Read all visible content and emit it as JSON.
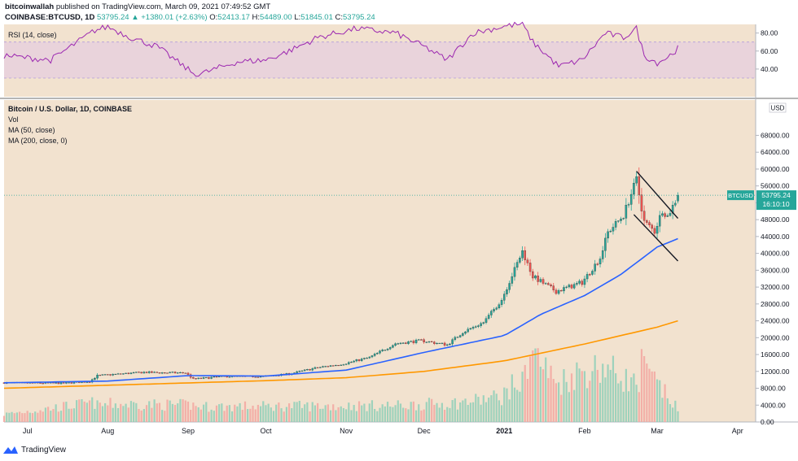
{
  "header": {
    "author": "bitcoinwallah",
    "published_text": "published on TradingView.com, March 09, 2021 07:49:52 GMT",
    "symbol": "COINBASE:BTCUSD, 1D",
    "last": "53795.24",
    "change": "▲ +1380.01 (+2.63%)",
    "o_label": "O:",
    "o": "52413.17",
    "h_label": "H:",
    "h": "54489.00",
    "l_label": "L:",
    "l": "51845.01",
    "c_label": "C:",
    "c": "53795.24"
  },
  "rsi_panel": {
    "label": "RSI (14, close)",
    "ticks": [
      "80.00",
      "60.00",
      "40.00"
    ]
  },
  "legend": {
    "title": "Bitcoin / U.S. Dollar, 1D, COINBASE",
    "items": [
      "Vol",
      "MA (50, close)",
      "MA (200, close, 0)"
    ]
  },
  "currency_label": "USD",
  "price_label": {
    "symbol": "BTCUSD",
    "value": "53795.24",
    "countdown": "16:10:10"
  },
  "footer": {
    "brand": "TradingView"
  },
  "colors": {
    "bg": "#f2e2cf",
    "up": "#26a69a",
    "down": "#ef5350",
    "ma50": "#2962ff",
    "ma200": "#ff9800",
    "rsi_line": "#9c27b0",
    "rsi_band": "#e6cde0"
  },
  "chart_data": {
    "type": "candlestick",
    "title": "Bitcoin / U.S. Dollar, 1D, COINBASE",
    "y_ticks": [
      "0.00",
      "4000.00",
      "8000.00",
      "12000.00",
      "16000.00",
      "20000.00",
      "24000.00",
      "28000.00",
      "32000.00",
      "36000.00",
      "40000.00",
      "44000.00",
      "48000.00",
      "52000.00",
      "56000.00",
      "60000.00",
      "64000.00",
      "68000.00"
    ],
    "x_ticks": [
      "Jul",
      "Aug",
      "Sep",
      "Oct",
      "Nov",
      "Dec",
      "2021",
      "Feb",
      "Mar",
      "Apr"
    ],
    "ylim": [
      0,
      68000
    ],
    "close_keypoints": [
      [
        "Jun 22",
        9300
      ],
      [
        "Jul 01",
        9250
      ],
      [
        "Jul 15",
        9200
      ],
      [
        "Jul 25",
        9600
      ],
      [
        "Jul 28",
        11000
      ],
      [
        "Aug 15",
        11800
      ],
      [
        "Aug 20",
        11700
      ],
      [
        "Aug 31",
        11650
      ],
      [
        "Sep 03",
        10200
      ],
      [
        "Sep 15",
        10800
      ],
      [
        "Sep 30",
        10800
      ],
      [
        "Oct 10",
        11400
      ],
      [
        "Oct 21",
        12900
      ],
      [
        "Oct 31",
        13800
      ],
      [
        "Nov 10",
        15300
      ],
      [
        "Nov 20",
        18600
      ],
      [
        "Nov 30",
        19300
      ],
      [
        "Dec 10",
        18300
      ],
      [
        "Dec 16",
        21300
      ],
      [
        "Dec 24",
        23600
      ],
      [
        "Dec 31",
        29000
      ],
      [
        "Jan 08",
        40500
      ],
      [
        "Jan 12",
        34500
      ],
      [
        "Jan 21",
        31000
      ],
      [
        "Jan 31",
        33100
      ],
      [
        "Feb 07",
        38900
      ],
      [
        "Feb 10",
        45000
      ],
      [
        "Feb 16",
        49000
      ],
      [
        "Feb 21",
        57500
      ],
      [
        "Feb 22",
        54000
      ],
      [
        "Feb 24",
        47500
      ],
      [
        "Feb 28",
        45200
      ],
      [
        "Mar 03",
        50300
      ],
      [
        "Mar 05",
        48800
      ],
      [
        "Mar 07",
        51200
      ],
      [
        "Mar 08",
        52400
      ],
      [
        "Mar 09",
        53795
      ]
    ],
    "ma50_keypoints": [
      [
        "Jun 22",
        9300
      ],
      [
        "Aug 01",
        9700
      ],
      [
        "Sep 01",
        11000
      ],
      [
        "Oct 01",
        10900
      ],
      [
        "Nov 01",
        12300
      ],
      [
        "Dec 01",
        16500
      ],
      [
        "Jan 01",
        20500
      ],
      [
        "Jan 15",
        25500
      ],
      [
        "Feb 01",
        30000
      ],
      [
        "Feb 15",
        35000
      ],
      [
        "Mar 01",
        41500
      ],
      [
        "Mar 09",
        43500
      ]
    ],
    "ma200_keypoints": [
      [
        "Jun 22",
        8000
      ],
      [
        "Oct 01",
        9800
      ],
      [
        "Nov 01",
        10500
      ],
      [
        "Dec 01",
        12000
      ],
      [
        "Jan 01",
        14500
      ],
      [
        "Feb 01",
        18500
      ],
      [
        "Mar 01",
        22500
      ],
      [
        "Mar 09",
        24000
      ]
    ],
    "volume_keypoints": [
      [
        "Jun 22",
        1500
      ],
      [
        "Jul 27",
        3800
      ],
      [
        "Jul 28",
        3200
      ],
      [
        "Aug 02",
        3500
      ],
      [
        "Sep 03",
        3300
      ],
      [
        "Sep 04",
        3000
      ],
      [
        "Nov 20",
        3200
      ],
      [
        "Dec 16",
        3800
      ],
      [
        "Dec 31",
        5000
      ],
      [
        "Jan 04",
        7000
      ],
      [
        "Jan 08",
        7500
      ],
      [
        "Jan 11",
        14600
      ],
      [
        "Jan 21",
        7500
      ],
      [
        "Jan 29",
        9500
      ],
      [
        "Feb 08",
        10900
      ],
      [
        "Feb 22",
        7000
      ],
      [
        "Feb 23",
        10900
      ],
      [
        "Mar 09",
        2500
      ]
    ],
    "rsi_keypoints": [
      [
        "Jun 22",
        55
      ],
      [
        "Jul 10",
        50
      ],
      [
        "Jul 27",
        83
      ],
      [
        "Aug 01",
        87
      ],
      [
        "Aug 10",
        75
      ],
      [
        "Aug 20",
        65
      ],
      [
        "Sep 04",
        33
      ],
      [
        "Sep 20",
        48
      ],
      [
        "Oct 01",
        50
      ],
      [
        "Oct 10",
        60
      ],
      [
        "Oct 21",
        75
      ],
      [
        "Nov 05",
        85
      ],
      [
        "Nov 20",
        80
      ],
      [
        "Dec 01",
        65
      ],
      [
        "Dec 10",
        50
      ],
      [
        "Dec 20",
        80
      ],
      [
        "Jan 02",
        88
      ],
      [
        "Jan 08",
        90
      ],
      [
        "Jan 12",
        70
      ],
      [
        "Jan 22",
        43
      ],
      [
        "Jan 31",
        50
      ],
      [
        "Feb 09",
        80
      ],
      [
        "Feb 16",
        75
      ],
      [
        "Feb 21",
        85
      ],
      [
        "Feb 24",
        55
      ],
      [
        "Mar 01",
        47
      ],
      [
        "Mar 05",
        53
      ],
      [
        "Mar 09",
        63
      ]
    ],
    "rsi_ylim": [
      30,
      90
    ],
    "rsi_ticks": [
      80,
      60,
      40
    ],
    "annotation": "descending channel (bull flag) drawn from Feb 21 to Mar 09",
    "last_price": 53795.24
  }
}
